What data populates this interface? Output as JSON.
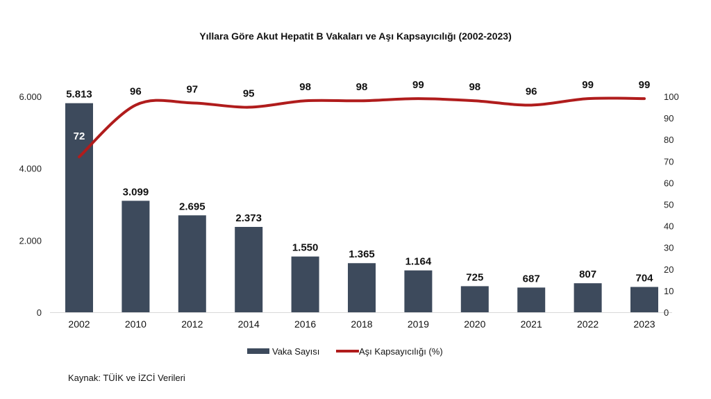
{
  "chart_data": {
    "type": "bar+line",
    "title": "Yıllara Göre Akut Hepatit B Vakaları ve Aşı Kapsayıcılığı (2002-2023)",
    "categories": [
      "2002",
      "2010",
      "2012",
      "2014",
      "2016",
      "2018",
      "2019",
      "2020",
      "2021",
      "2022",
      "2023"
    ],
    "series": [
      {
        "name": "Vaka Sayısı",
        "type": "bar",
        "axis": "left",
        "color": "#3d4a5c",
        "values": [
          5813,
          3099,
          2695,
          2373,
          1550,
          1365,
          1164,
          725,
          687,
          807,
          704
        ],
        "labels": [
          "5.813",
          "3.099",
          "2.695",
          "2.373",
          "1.550",
          "1.365",
          "1.164",
          "725",
          "687",
          "807",
          "704"
        ]
      },
      {
        "name": "Aşı Kapsayıcılığı (%)",
        "type": "line",
        "axis": "right",
        "color": "#b01c1c",
        "values": [
          72,
          96,
          97,
          95,
          98,
          98,
          99,
          98,
          96,
          99,
          99
        ],
        "labels": [
          "72",
          "96",
          "97",
          "95",
          "98",
          "98",
          "99",
          "98",
          "96",
          "99",
          "99"
        ]
      }
    ],
    "left_axis": {
      "range": [
        0,
        6000
      ],
      "ticks": [
        0,
        2000,
        4000,
        6000
      ],
      "tick_labels": [
        "0",
        "2.000",
        "4.000",
        "6.000"
      ]
    },
    "right_axis": {
      "range": [
        0,
        100
      ],
      "ticks": [
        0,
        10,
        20,
        30,
        40,
        50,
        60,
        70,
        80,
        90,
        100
      ],
      "tick_labels": [
        "0",
        "10",
        "20",
        "30",
        "40",
        "50",
        "60",
        "70",
        "80",
        "90",
        "100"
      ]
    },
    "legend": {
      "placement": "bottom",
      "items": [
        "Vaka Sayısı",
        "Aşı Kapsayıcılığı (%)"
      ]
    },
    "grid": false,
    "source": "Kaynak: TÜİK ve İZCİ Verileri"
  }
}
